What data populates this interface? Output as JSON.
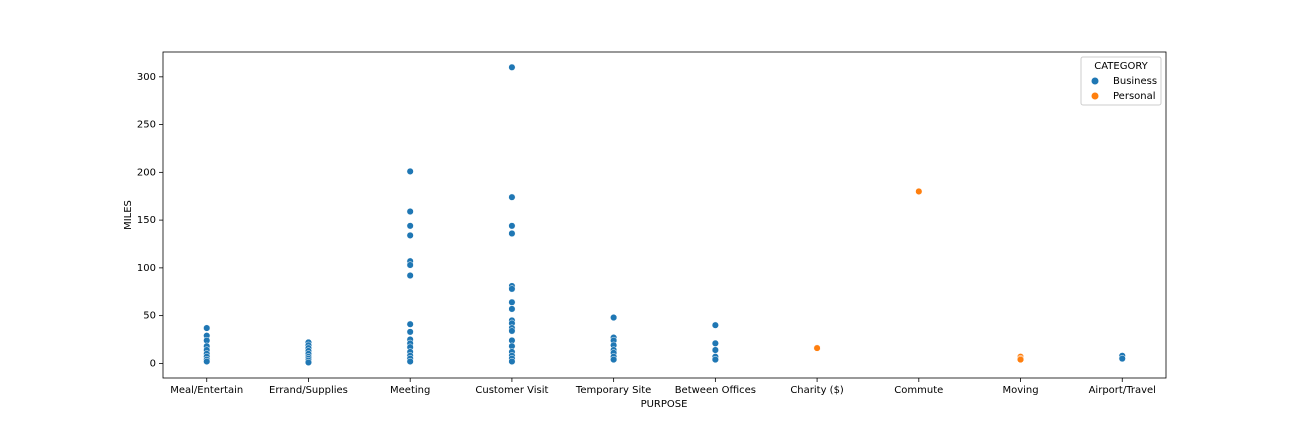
{
  "chart_data": {
    "type": "scatter",
    "x_label": "PURPOSE",
    "y_label": "MILES",
    "categories": [
      "Meal/Entertain",
      "Errand/Supplies",
      "Meeting",
      "Customer Visit",
      "Temporary Site",
      "Between Offices",
      "Charity ($)",
      "Commute",
      "Moving",
      "Airport/Travel"
    ],
    "ylim": [
      -15.3,
      326
    ],
    "yticks": [
      0,
      50,
      100,
      150,
      200,
      250,
      300
    ],
    "legend_title": "CATEGORY",
    "legend_position": "upper right",
    "series": [
      {
        "name": "Business",
        "color": "#1f77b4",
        "x": [
          "Meal/Entertain",
          "Meal/Entertain",
          "Meal/Entertain",
          "Meal/Entertain",
          "Meal/Entertain",
          "Meal/Entertain",
          "Meal/Entertain",
          "Meal/Entertain",
          "Meal/Entertain",
          "Errand/Supplies",
          "Errand/Supplies",
          "Errand/Supplies",
          "Errand/Supplies",
          "Errand/Supplies",
          "Errand/Supplies",
          "Errand/Supplies",
          "Errand/Supplies",
          "Errand/Supplies",
          "Meeting",
          "Meeting",
          "Meeting",
          "Meeting",
          "Meeting",
          "Meeting",
          "Meeting",
          "Meeting",
          "Meeting",
          "Meeting",
          "Meeting",
          "Meeting",
          "Meeting",
          "Meeting",
          "Meeting",
          "Meeting",
          "Customer Visit",
          "Customer Visit",
          "Customer Visit",
          "Customer Visit",
          "Customer Visit",
          "Customer Visit",
          "Customer Visit",
          "Customer Visit",
          "Customer Visit",
          "Customer Visit",
          "Customer Visit",
          "Customer Visit",
          "Customer Visit",
          "Customer Visit",
          "Customer Visit",
          "Customer Visit",
          "Customer Visit",
          "Customer Visit",
          "Temporary Site",
          "Temporary Site",
          "Temporary Site",
          "Temporary Site",
          "Temporary Site",
          "Temporary Site",
          "Temporary Site",
          "Temporary Site",
          "Between Offices",
          "Between Offices",
          "Between Offices",
          "Between Offices",
          "Between Offices",
          "Airport/Travel",
          "Airport/Travel"
        ],
        "values": [
          37,
          29,
          24,
          18,
          14,
          10,
          7,
          4,
          2,
          22,
          19,
          16,
          13,
          10,
          7,
          5,
          3,
          1,
          201,
          159,
          144,
          134,
          107,
          103,
          92,
          41,
          33,
          25,
          21,
          17,
          12,
          8,
          5,
          2,
          310,
          174,
          144,
          136,
          81,
          78,
          64,
          57,
          45,
          42,
          37,
          34,
          24,
          18,
          12,
          8,
          5,
          2,
          48,
          27,
          24,
          19,
          14,
          11,
          7,
          4,
          40,
          21,
          14,
          7,
          4,
          8,
          5
        ]
      },
      {
        "name": "Personal",
        "color": "#ff7f0e",
        "x": [
          "Charity ($)",
          "Commute",
          "Moving",
          "Moving",
          "Moving"
        ],
        "values": [
          16,
          180,
          7,
          5,
          4
        ]
      }
    ]
  }
}
